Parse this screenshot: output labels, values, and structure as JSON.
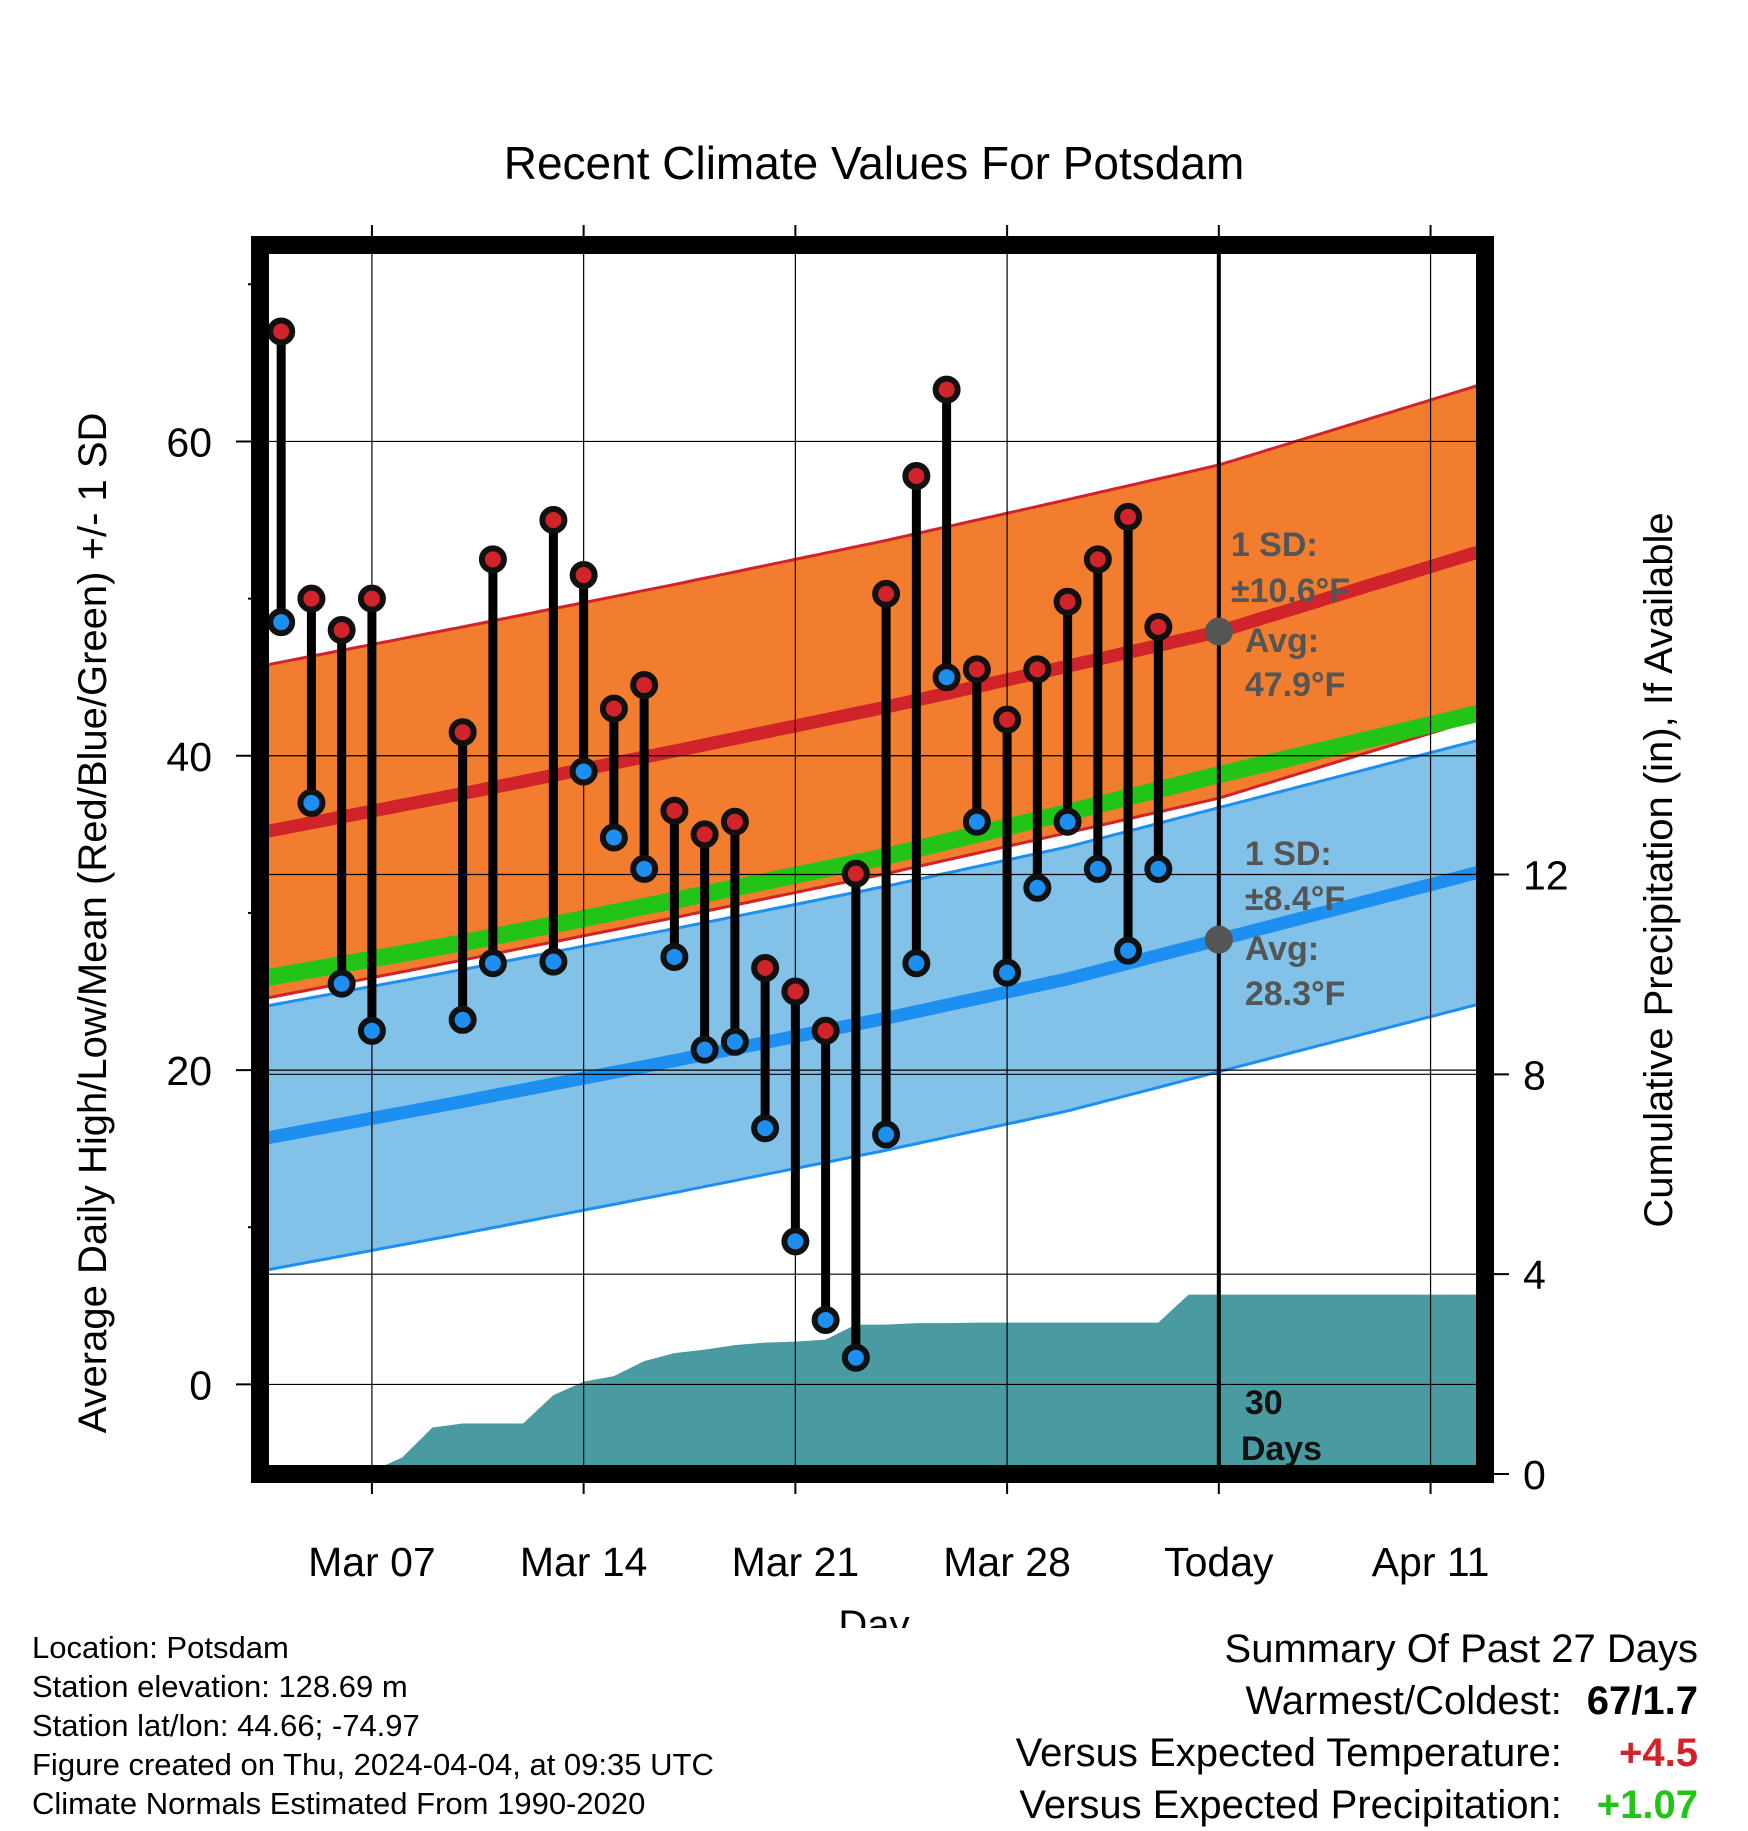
{
  "chart_data": {
    "type": "line",
    "title": "Recent Climate Values For Potsdam",
    "xlabel": "Day",
    "ylabel_left": "Average Daily High/Low/Mean (Red/Blue/Green) +/- 1 SD",
    "ylabel_right": "Cumulative Precipitation (in), If Available",
    "x_ticks": [
      "Mar 07",
      "Mar 14",
      "Mar 21",
      "Mar 28",
      "Today",
      "Apr 11"
    ],
    "x_tick_days": [
      7,
      14,
      21,
      28,
      35,
      42
    ],
    "x_range_days": [
      3.3,
      43.8
    ],
    "today_day": 35,
    "y_ticks": [
      0,
      20,
      40,
      60
    ],
    "ylim": [
      -5.7,
      72.5
    ],
    "y2_ticks": [
      0,
      4,
      8,
      12
    ],
    "y2lim": [
      0,
      24.6
    ],
    "colors": {
      "high": "#d1232a",
      "low": "#1c8ff0",
      "mean": "#22c417",
      "high_band": "#f37d2e",
      "low_band": "#83c2e8",
      "overlap_band": "#911516",
      "precip": "#4a9aa2",
      "marker_edge": "#111111",
      "avg_dot": "#555555"
    },
    "normals": {
      "days": [
        3.3,
        10,
        17,
        24,
        30,
        35,
        43.8
      ],
      "high_mean": [
        35.1,
        37.6,
        40.3,
        43.1,
        45.7,
        47.9,
        53.1
      ],
      "high_sd": 10.6,
      "low_mean": [
        15.6,
        18.0,
        20.6,
        23.3,
        25.8,
        28.3,
        32.7
      ],
      "low_sd": 8.4,
      "mean_mean": [
        25.8,
        28.1,
        30.8,
        33.6,
        36.4,
        38.8,
        42.8
      ]
    },
    "observed": {
      "days": [
        4,
        5,
        6,
        7,
        10,
        11,
        13,
        14,
        15,
        16,
        17,
        18,
        19,
        20,
        21,
        22,
        23,
        24,
        25,
        26,
        27,
        28,
        29,
        30,
        31,
        32,
        33
      ],
      "high": [
        67,
        50,
        48,
        50,
        41.5,
        52.5,
        55,
        51.5,
        43,
        44.5,
        36.5,
        35,
        35.8,
        26.5,
        25,
        22.5,
        32.5,
        50.3,
        57.8,
        63.3,
        45.5,
        42.3,
        45.5,
        49.8,
        52.5,
        55.2,
        48.2
      ],
      "low": [
        48.5,
        37,
        25.5,
        22.5,
        23.2,
        26.8,
        26.9,
        39,
        34.8,
        32.8,
        27.2,
        21.3,
        21.8,
        16.3,
        9.1,
        4.1,
        1.7,
        15.9,
        26.8,
        45,
        35.8,
        26.2,
        31.6,
        35.8,
        32.8,
        27.6,
        32.8
      ]
    },
    "precip": {
      "days": [
        3.3,
        5,
        6,
        7,
        8,
        9,
        10,
        11,
        12,
        13,
        14,
        15,
        16,
        17,
        18,
        19,
        20,
        21,
        22,
        23,
        24,
        25,
        26,
        27,
        28,
        29,
        30,
        31,
        32,
        33,
        34,
        43.8
      ],
      "values": [
        0,
        0.02,
        0.06,
        0.06,
        0.33,
        0.93,
        1.01,
        1.01,
        1.01,
        1.58,
        1.85,
        1.96,
        2.26,
        2.42,
        2.49,
        2.58,
        2.63,
        2.65,
        2.69,
        2.99,
        2.99,
        3.02,
        3.02,
        3.03,
        3.03,
        3.03,
        3.03,
        3.03,
        3.03,
        3.03,
        3.59,
        3.59
      ]
    },
    "annotations": {
      "high_sd_label": "1 SD:",
      "high_sd_value": "±10.6°F",
      "high_avg_label": "Avg:",
      "high_avg_value": "47.9°F",
      "low_sd_label": "1 SD:",
      "low_sd_value": "±8.4°F",
      "low_avg_label": "Avg:",
      "low_avg_value": "28.3°F",
      "days_window": "30",
      "days_word": "Days"
    }
  },
  "info": {
    "location": "Location: Potsdam",
    "elevation": "Station elevation: 128.69 m",
    "latlon": "Station lat/lon: 44.66; -74.97",
    "created": "Figure created on Thu, 2024-04-04, at 09:35 UTC",
    "normals": "Climate Normals Estimated From 1990-2020"
  },
  "summary": {
    "heading": "Summary Of Past 27 Days",
    "warm_cold_label": "Warmest/Coldest:",
    "warm_cold_value": "67/1.7",
    "temp_label": "Versus Expected Temperature:",
    "temp_value": "+4.5",
    "temp_color": "#d1232a",
    "precip_label": "Versus Expected Precipitation:",
    "precip_value": "+1.07",
    "precip_color": "#22c417"
  }
}
